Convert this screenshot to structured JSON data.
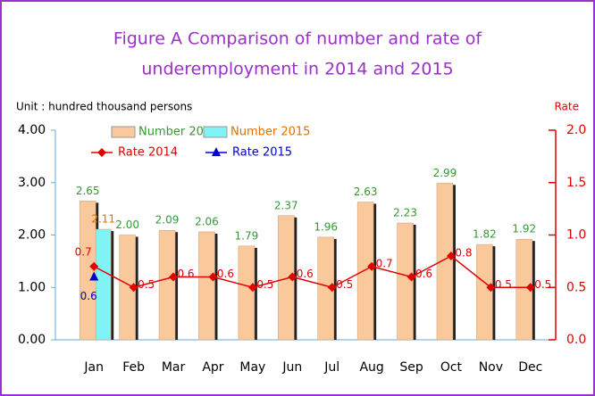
{
  "chart_data": {
    "type": "bar-line",
    "title": [
      "Figure A Comparison of number and rate of",
      "underemployment in 2014 and 2015"
    ],
    "y_label": "Unit : hundred thousand persons",
    "y2_label": "Rate",
    "categories": [
      "Jan",
      "Feb",
      "Mar",
      "Apr",
      "May",
      "Jun",
      "Jul",
      "Aug",
      "Sep",
      "Oct",
      "Nov",
      "Dec"
    ],
    "series": [
      {
        "name": "Number 2014",
        "type": "bar",
        "color": "#f9c89b",
        "label_color": "#339933",
        "values": [
          2.65,
          2.0,
          2.09,
          2.06,
          1.79,
          2.37,
          1.96,
          2.63,
          2.23,
          2.99,
          1.82,
          1.92
        ],
        "value_labels": [
          "2.65",
          "2.00",
          "2.09",
          "2.06",
          "1.79",
          "2.37",
          "1.96",
          "2.63",
          "2.23",
          "2.99",
          "1.82",
          "1.92"
        ]
      },
      {
        "name": "Number 2015",
        "type": "bar",
        "color": "#7ff3f5",
        "label_color": "#e07000",
        "values": [
          2.11,
          null,
          null,
          null,
          null,
          null,
          null,
          null,
          null,
          null,
          null,
          null
        ],
        "value_labels": [
          "2.11",
          null,
          null,
          null,
          null,
          null,
          null,
          null,
          null,
          null,
          null,
          null
        ]
      },
      {
        "name": "Rate 2014",
        "type": "line",
        "axis": "y2",
        "color": "#e00000",
        "marker": "diamond",
        "values": [
          0.7,
          0.5,
          0.6,
          0.6,
          0.5,
          0.6,
          0.5,
          0.7,
          0.6,
          0.8,
          0.5,
          0.5
        ]
      },
      {
        "name": "Rate 2015",
        "type": "line",
        "axis": "y2",
        "color": "#0000cc",
        "marker": "triangle",
        "values": [
          0.6,
          null,
          null,
          null,
          null,
          null,
          null,
          null,
          null,
          null,
          null,
          null
        ]
      }
    ],
    "ylim": [
      0,
      4
    ],
    "yticks": [
      {
        "value": 0,
        "label": "0.00"
      },
      {
        "value": 1,
        "label": "1.00"
      },
      {
        "value": 2,
        "label": "2.00"
      },
      {
        "value": 3,
        "label": "3.00"
      },
      {
        "value": 4,
        "label": "4.00"
      }
    ],
    "y2lim": [
      0,
      2
    ],
    "y2ticks": [
      {
        "value": 0,
        "label": "0.0"
      },
      0.5,
      {
        "value": 1,
        "label": "1.0"
      },
      1.5,
      {
        "value": 2,
        "label": "2.0"
      }
    ],
    "y2color": "#e00000",
    "grid": false
  }
}
